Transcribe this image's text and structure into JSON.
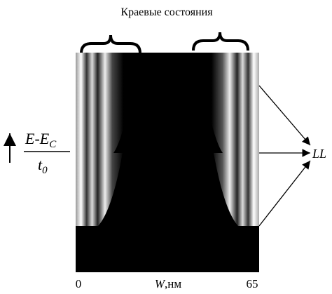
{
  "title": "Краевые состояния",
  "x_axis": {
    "start": "0",
    "end": "65",
    "variable": "W",
    "unit": ",нм"
  },
  "y_axis": {
    "numerator": "E-E",
    "numerator_sub": "C",
    "denominator": "t",
    "denominator_sub": "0"
  },
  "level_label": "LL"
}
